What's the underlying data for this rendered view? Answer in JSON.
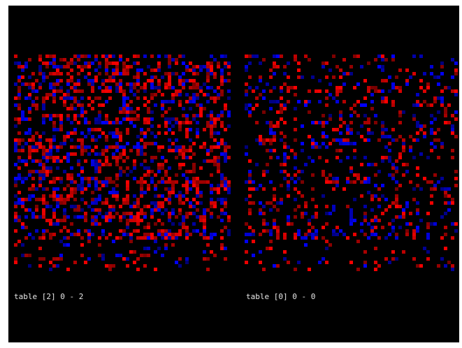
{
  "panels": [
    {
      "label": "table [2] 0 - 2"
    },
    {
      "label": "table [0] 0 - 0"
    }
  ]
}
